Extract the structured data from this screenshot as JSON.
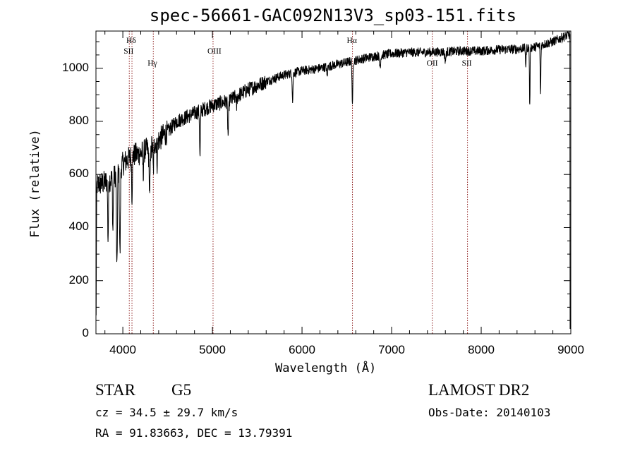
{
  "title": "spec-56661-GAC092N13V3_sp03-151.fits",
  "info": {
    "class": "STAR",
    "subclass": "G5",
    "survey": "LAMOST DR2",
    "cz": "cz = 34.5 ± 29.7 km/s",
    "obs_date": "Obs-Date: 20140103",
    "radec": "RA =  91.83663, DEC =  13.79391"
  },
  "chart_data": {
    "type": "line",
    "title": "spec-56661-GAC092N13V3_sp03-151.fits",
    "xlabel": "Wavelength (Å)",
    "ylabel": "Flux (relative)",
    "xlim": [
      3700,
      9000
    ],
    "ylim": [
      0,
      1140
    ],
    "xticks": [
      4000,
      5000,
      6000,
      7000,
      8000,
      9000
    ],
    "yticks": [
      0,
      200,
      400,
      600,
      800,
      1000
    ],
    "grid": false,
    "colors": {
      "spectrum": "#000000",
      "line_marker": "#8b1a1a"
    },
    "spectral_lines": [
      {
        "label": "Hδ",
        "wavelength": 4102
      },
      {
        "label": "SII",
        "wavelength": 4072
      },
      {
        "label": "Hγ",
        "wavelength": 4340
      },
      {
        "label": "OIII",
        "wavelength": 5007
      },
      {
        "label": "Hα",
        "wavelength": 6563
      },
      {
        "label": "OII",
        "wavelength": 7454
      },
      {
        "label": "SII",
        "wavelength": 7847
      }
    ],
    "continuum": [
      [
        3700,
        560
      ],
      [
        3800,
        570
      ],
      [
        3900,
        590
      ],
      [
        4000,
        640
      ],
      [
        4100,
        670
      ],
      [
        4200,
        680
      ],
      [
        4300,
        700
      ],
      [
        4400,
        730
      ],
      [
        4500,
        760
      ],
      [
        4600,
        800
      ],
      [
        4800,
        830
      ],
      [
        5000,
        860
      ],
      [
        5200,
        880
      ],
      [
        5400,
        920
      ],
      [
        5600,
        950
      ],
      [
        5800,
        975
      ],
      [
        6000,
        990
      ],
      [
        6200,
        1000
      ],
      [
        6400,
        1015
      ],
      [
        6600,
        1030
      ],
      [
        6800,
        1045
      ],
      [
        7000,
        1055
      ],
      [
        7200,
        1060
      ],
      [
        7400,
        1060
      ],
      [
        7600,
        1062
      ],
      [
        7800,
        1065
      ],
      [
        8000,
        1065
      ],
      [
        8200,
        1070
      ],
      [
        8400,
        1072
      ],
      [
        8600,
        1080
      ],
      [
        8800,
        1100
      ],
      [
        9000,
        1130
      ]
    ],
    "absorption_features": [
      {
        "wavelength": 3702,
        "depth": 480,
        "width": 4
      },
      {
        "wavelength": 3835,
        "depth": 220,
        "width": 6
      },
      {
        "wavelength": 3889,
        "depth": 200,
        "width": 6
      },
      {
        "wavelength": 3934,
        "depth": 380,
        "width": 7
      },
      {
        "wavelength": 3968,
        "depth": 330,
        "width": 7
      },
      {
        "wavelength": 4102,
        "depth": 150,
        "width": 6
      },
      {
        "wavelength": 4227,
        "depth": 90,
        "width": 5
      },
      {
        "wavelength": 4300,
        "depth": 150,
        "width": 10
      },
      {
        "wavelength": 4340,
        "depth": 100,
        "width": 6
      },
      {
        "wavelength": 4383,
        "depth": 80,
        "width": 5
      },
      {
        "wavelength": 4861,
        "depth": 180,
        "width": 6
      },
      {
        "wavelength": 5175,
        "depth": 130,
        "width": 8
      },
      {
        "wavelength": 5270,
        "depth": 40,
        "width": 5
      },
      {
        "wavelength": 5895,
        "depth": 110,
        "width": 6
      },
      {
        "wavelength": 6280,
        "depth": 40,
        "width": 6
      },
      {
        "wavelength": 6563,
        "depth": 180,
        "width": 6
      },
      {
        "wavelength": 6870,
        "depth": 40,
        "width": 10
      },
      {
        "wavelength": 7600,
        "depth": 30,
        "width": 10
      },
      {
        "wavelength": 8498,
        "depth": 70,
        "width": 5
      },
      {
        "wavelength": 8542,
        "depth": 230,
        "width": 5
      },
      {
        "wavelength": 8662,
        "depth": 190,
        "width": 5
      }
    ],
    "noise_amplitude": 18
  }
}
